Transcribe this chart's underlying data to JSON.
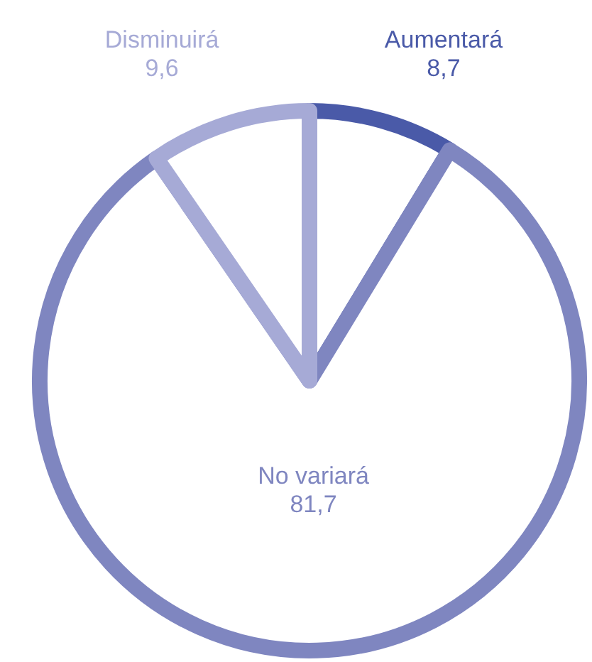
{
  "chart_data": {
    "type": "pie",
    "categories": [
      "Aumentará",
      "No variará",
      "Disminuirá"
    ],
    "values": [
      8.7,
      81.7,
      9.6
    ],
    "colors": [
      "#4a5aa8",
      "#7f86c0",
      "#a6aad6"
    ],
    "value_labels": [
      "8,7",
      "81,7",
      "9,6"
    ],
    "legend": false
  }
}
